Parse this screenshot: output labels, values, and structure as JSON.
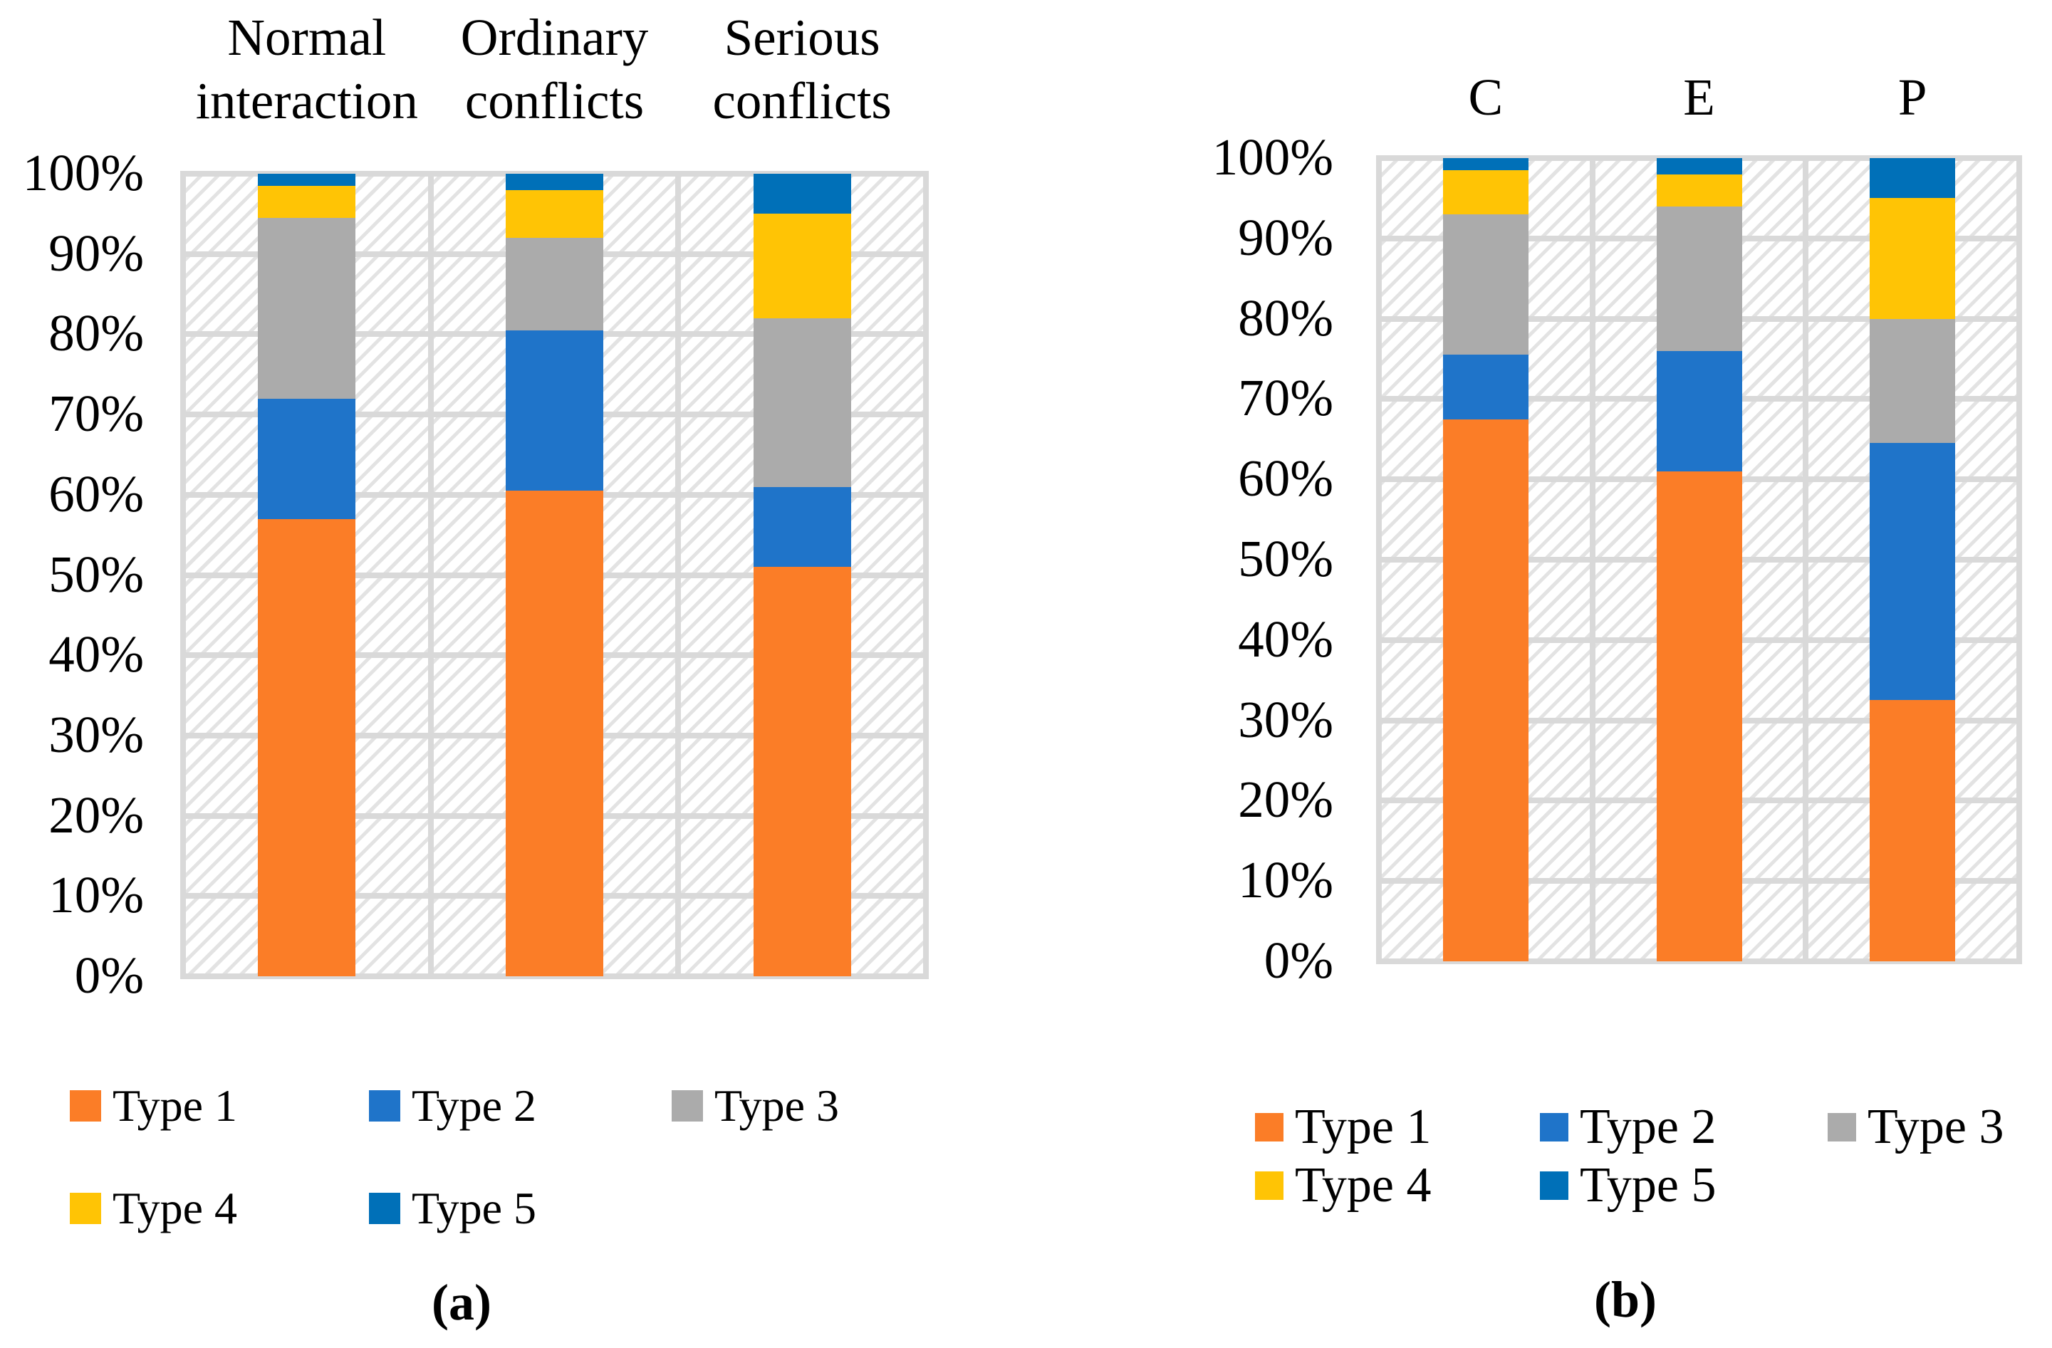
{
  "colors": {
    "type1": "#FB7D27",
    "type2": "#1F74C9",
    "type3": "#ABABAB",
    "type4": "#FFC405",
    "type5": "#0070B8",
    "gridline": "#D9D9D9",
    "hatch": "#E3E3E3"
  },
  "chart_data": [
    {
      "type": "bar",
      "subtype": "stacked-100-percent",
      "panel": "a",
      "caption": "(a)",
      "title": "",
      "xlabel": "",
      "ylabel": "",
      "ylim": [
        0,
        100
      ],
      "grid": true,
      "legend_position": "below",
      "categories": [
        "Normal interaction",
        "Ordinary conflicts",
        "Serious conflicts"
      ],
      "y_tick_labels": [
        "0%",
        "10%",
        "20%",
        "30%",
        "40%",
        "50%",
        "60%",
        "70%",
        "80%",
        "90%",
        "100%"
      ],
      "series": [
        {
          "name": "Type 1",
          "color_key": "type1",
          "values": [
            57,
            60.5,
            51
          ]
        },
        {
          "name": "Type 2",
          "color_key": "type2",
          "values": [
            15,
            20,
            10
          ]
        },
        {
          "name": "Type 3",
          "color_key": "type3",
          "values": [
            22.5,
            11.5,
            21
          ]
        },
        {
          "name": "Type 4",
          "color_key": "type4",
          "values": [
            4,
            6,
            13
          ]
        },
        {
          "name": "Type 5",
          "color_key": "type5",
          "values": [
            1.5,
            2,
            5
          ]
        }
      ]
    },
    {
      "type": "bar",
      "subtype": "stacked-100-percent",
      "panel": "b",
      "caption": "(b)",
      "title": "",
      "xlabel": "",
      "ylabel": "",
      "ylim": [
        0,
        100
      ],
      "grid": true,
      "legend_position": "below",
      "categories": [
        "C",
        "E",
        "P"
      ],
      "y_tick_labels": [
        "0%",
        "10%",
        "20%",
        "30%",
        "40%",
        "50%",
        "60%",
        "70%",
        "80%",
        "90%",
        "100%"
      ],
      "series": [
        {
          "name": "Type 1",
          "color_key": "type1",
          "values": [
            67.5,
            61,
            32.5
          ]
        },
        {
          "name": "Type 2",
          "color_key": "type2",
          "values": [
            8,
            15,
            32
          ]
        },
        {
          "name": "Type 3",
          "color_key": "type3",
          "values": [
            17.5,
            18,
            15.5
          ]
        },
        {
          "name": "Type 4",
          "color_key": "type4",
          "values": [
            5.5,
            4,
            15
          ]
        },
        {
          "name": "Type 5",
          "color_key": "type5",
          "values": [
            1.5,
            2,
            5
          ]
        }
      ]
    }
  ]
}
